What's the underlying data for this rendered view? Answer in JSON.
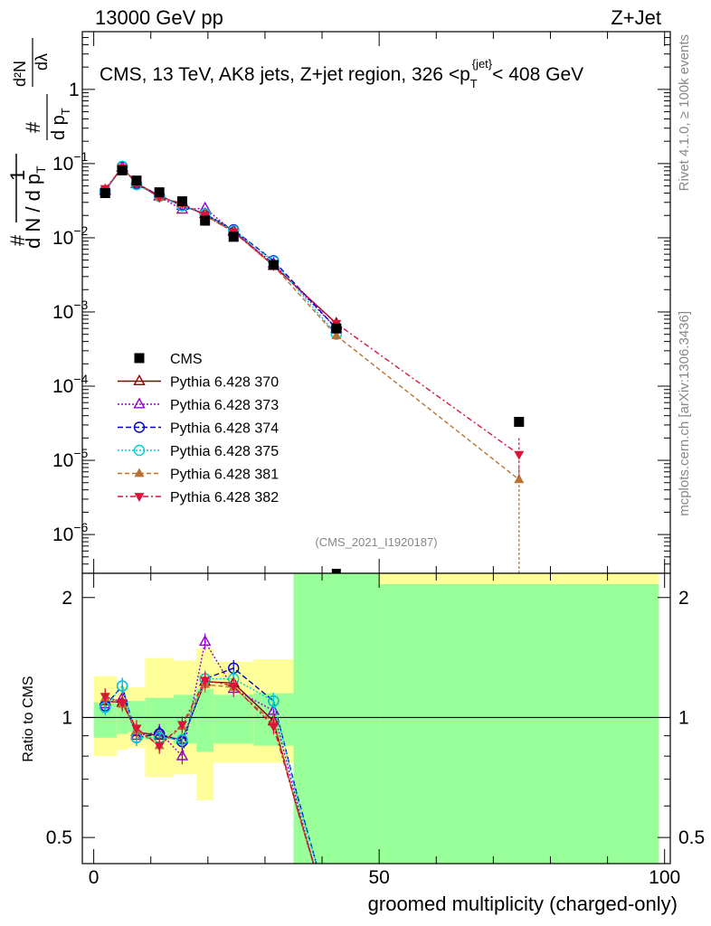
{
  "header": {
    "left": "13000 GeV pp",
    "right": "Z+Jet"
  },
  "side": {
    "rivet": "Rivet 4.1.0, ≥ 100k events",
    "mcplots": "mcplots.cern.ch [arXiv:1306.3436]"
  },
  "chart_data": [
    {
      "type": "line",
      "title": "CMS, 13 TeV, AK8 jets, Z+jet region, 326 <p_T^{jet}< 408 GeV",
      "title_parts": {
        "main": "CMS, 13 TeV, AK8 jets, Z+jet region, 326 <p",
        "sub": "T",
        "sup": "{jet}",
        "tail": "< 408 GeV"
      },
      "ylabel_parts": {
        "hash": "#",
        "one": "1",
        "dN": "d N / d p",
        "T": "T",
        "num": "d²N",
        "den": "d p",
        "den_tail": "dλ"
      },
      "watermark": "(CMS_2021_I1920187)",
      "yscale": "log",
      "xlim": [
        -2,
        101
      ],
      "ylim": [
        3e-07,
        6
      ],
      "yticks": [
        {
          "v": 1e-06,
          "b": "10",
          "e": "−6"
        },
        {
          "v": 1e-05,
          "b": "10",
          "e": "−5"
        },
        {
          "v": 0.0001,
          "b": "10",
          "e": "−4"
        },
        {
          "v": 0.001,
          "b": "10",
          "e": "−3"
        },
        {
          "v": 0.01,
          "b": "10",
          "e": "−2"
        },
        {
          "v": 0.1,
          "b": "10",
          "e": "−1"
        },
        {
          "v": 1,
          "b": "1",
          "e": ""
        }
      ],
      "legend_position": "middle-left",
      "series": [
        {
          "name": "CMS",
          "color": "#000000",
          "marker": "square",
          "dash": "none",
          "x": [
            2,
            5,
            7.5,
            11.5,
            15.5,
            19.5,
            24.5,
            31.5,
            42.5,
            74.5
          ],
          "y": [
            0.04,
            0.081,
            0.059,
            0.041,
            0.031,
            0.017,
            0.0103,
            0.0043,
            0.0006,
            3.3e-05
          ]
        },
        {
          "name": "Pythia 6.428 370",
          "color": "#8b0000",
          "marker": "triangle-open",
          "dash": "none",
          "x": [
            2,
            5,
            7.5,
            11.5,
            15.5,
            19.5,
            24.5,
            31.5,
            42.5
          ],
          "y": [
            0.044,
            0.088,
            0.054,
            0.037,
            0.027,
            0.021,
            0.0125,
            0.0042,
            0.0007
          ]
        },
        {
          "name": "Pythia 6.428 373",
          "color": "#9400d3",
          "marker": "triangle-open",
          "dash": "2,2",
          "x": [
            2,
            5,
            7.5,
            11.5,
            15.5,
            19.5,
            24.5,
            31.5,
            42.5
          ],
          "y": [
            0.043,
            0.09,
            0.053,
            0.036,
            0.024,
            0.025,
            0.012,
            0.0045,
            0.0006
          ]
        },
        {
          "name": "Pythia 6.428 374",
          "color": "#0000cd",
          "marker": "circle-open",
          "dash": "6,3",
          "x": [
            2,
            5,
            7.5,
            11.5,
            15.5,
            19.5,
            24.5,
            31.5,
            42.5
          ],
          "y": [
            0.043,
            0.091,
            0.053,
            0.037,
            0.027,
            0.021,
            0.0128,
            0.0049,
            0.0006
          ]
        },
        {
          "name": "Pythia 6.428 375",
          "color": "#00ced1",
          "marker": "circle-open",
          "dash": "2,2",
          "x": [
            2,
            5,
            7.5,
            11.5,
            15.5,
            19.5,
            24.5,
            31.5,
            42.5
          ],
          "y": [
            0.042,
            0.092,
            0.052,
            0.036,
            0.027,
            0.021,
            0.0125,
            0.0048,
            0.0005
          ]
        },
        {
          "name": "Pythia 6.428 381",
          "color": "#b87333",
          "marker": "triangle-filled",
          "dash": "5,3",
          "x": [
            2,
            5,
            7.5,
            11.5,
            15.5,
            19.5,
            24.5,
            31.5,
            42.5,
            74.5
          ],
          "y": [
            0.045,
            0.087,
            0.055,
            0.035,
            0.029,
            0.02,
            0.012,
            0.0042,
            0.00048,
            5.5e-06
          ]
        },
        {
          "name": "Pythia 6.428 382",
          "color": "#dc143c",
          "marker": "triangle-down-filled",
          "dash": "6,3,2,3",
          "x": [
            2,
            5,
            7.5,
            11.5,
            15.5,
            19.5,
            24.5,
            31.5,
            42.5,
            74.5
          ],
          "y": [
            0.046,
            0.088,
            0.055,
            0.035,
            0.029,
            0.02,
            0.012,
            0.0042,
            0.0007,
            1.2e-05
          ]
        }
      ]
    },
    {
      "type": "line",
      "ylabel": "Ratio to CMS",
      "xlabel": "groomed multiplicity (charged-only)",
      "xlim": [
        -2,
        101
      ],
      "xticks": [
        0,
        50,
        100
      ],
      "ylim": [
        0.43,
        2.3
      ],
      "yticks": [
        0.5,
        1,
        2
      ],
      "reference_line": 1,
      "bands": {
        "inner_color": "#99ff99",
        "outer_color": "#ffff99",
        "bins": [
          {
            "x0": 0,
            "x1": 4,
            "inner": [
              0.89,
              1.09
            ],
            "outer": [
              0.8,
              1.27
            ]
          },
          {
            "x0": 4,
            "x1": 6,
            "inner": [
              0.91,
              1.1
            ],
            "outer": [
              0.83,
              1.2
            ]
          },
          {
            "x0": 6,
            "x1": 9,
            "inner": [
              0.92,
              1.1
            ],
            "outer": [
              0.84,
              1.19
            ]
          },
          {
            "x0": 9,
            "x1": 14,
            "inner": [
              0.88,
              1.12
            ],
            "outer": [
              0.71,
              1.41
            ]
          },
          {
            "x0": 14,
            "x1": 18,
            "inner": [
              0.86,
              1.14
            ],
            "outer": [
              0.72,
              1.39
            ]
          },
          {
            "x0": 18,
            "x1": 21,
            "inner": [
              0.82,
              1.18
            ],
            "outer": [
              0.62,
              1.49
            ]
          },
          {
            "x0": 21,
            "x1": 28,
            "inner": [
              0.86,
              1.14
            ],
            "outer": [
              0.77,
              1.38
            ]
          },
          {
            "x0": 28,
            "x1": 35,
            "inner": [
              0.85,
              1.15
            ],
            "outer": [
              0.77,
              1.4
            ]
          },
          {
            "x0": 35,
            "x1": 50,
            "inner": [
              0.43,
              2.3
            ],
            "outer": [
              0.43,
              2.3
            ]
          },
          {
            "x0": 50,
            "x1": 99,
            "inner": [
              0.43,
              2.3
            ],
            "outer": [
              0.43,
              2.3
            ]
          }
        ],
        "top_outer_strip": {
          "x0": 50,
          "x1": 99
        }
      },
      "series": [
        {
          "name": "Pythia 6.428 370",
          "x": [
            2,
            5,
            7.5,
            11.5,
            15.5,
            19.5,
            24.5,
            31.5,
            35.5,
            38.5
          ],
          "y": [
            1.1,
            1.09,
            0.92,
            0.9,
            0.88,
            1.23,
            1.22,
            0.98,
            0.6,
            0.43
          ]
        },
        {
          "name": "Pythia 6.428 373",
          "x": [
            2,
            5,
            7.5,
            11.5,
            15.5,
            19.5,
            24.5,
            31.5,
            35.5,
            38.5
          ],
          "y": [
            1.08,
            1.12,
            0.9,
            0.92,
            0.8,
            1.55,
            1.18,
            1.04,
            0.62,
            0.43
          ]
        },
        {
          "name": "Pythia 6.428 374",
          "x": [
            2,
            5,
            7.5,
            11.5,
            15.5,
            19.5,
            24.5,
            31.5,
            35.5,
            39
          ],
          "y": [
            1.07,
            1.2,
            0.89,
            0.91,
            0.87,
            1.25,
            1.33,
            1.1,
            0.65,
            0.43
          ]
        },
        {
          "name": "Pythia 6.428 375",
          "x": [
            2,
            5,
            7.5,
            11.5,
            15.5,
            19.5,
            24.5,
            31.5,
            35.5,
            39
          ],
          "y": [
            1.06,
            1.2,
            0.89,
            0.89,
            0.88,
            1.25,
            1.25,
            1.1,
            0.64,
            0.43
          ]
        },
        {
          "name": "Pythia 6.428 381",
          "x": [
            2,
            5,
            7.5,
            11.5,
            15.5,
            19.5,
            24.5,
            31.5,
            35.5,
            38.5
          ],
          "y": [
            1.12,
            1.08,
            0.93,
            0.85,
            0.95,
            1.21,
            1.19,
            0.97,
            0.6,
            0.43
          ]
        },
        {
          "name": "Pythia 6.428 382",
          "x": [
            2,
            5,
            7.5,
            11.5,
            15.5,
            19.5,
            24.5,
            31.5,
            35.5,
            38.5
          ],
          "y": [
            1.13,
            1.09,
            0.94,
            0.85,
            0.96,
            1.24,
            1.2,
            0.95,
            0.6,
            0.43
          ]
        }
      ]
    }
  ]
}
